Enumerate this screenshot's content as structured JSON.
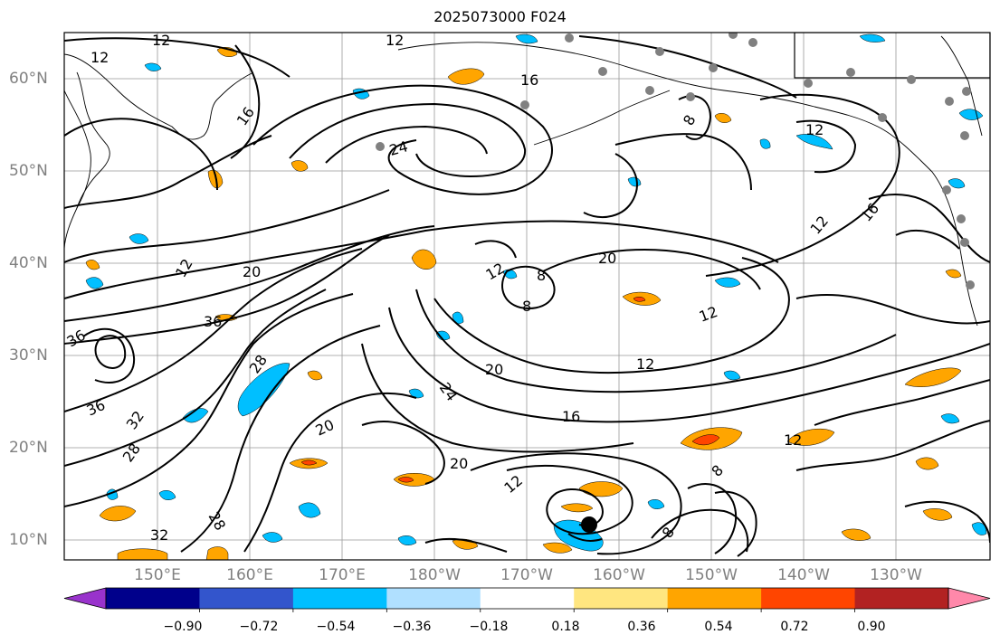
{
  "title": "2025073000 F024",
  "lat_labels": [
    "60°N",
    "50°N",
    "40°N",
    "30°N",
    "20°N",
    "10°N"
  ],
  "lon_labels": [
    "150°E",
    "160°E",
    "170°E",
    "180°W",
    "170°W",
    "160°W",
    "150°W",
    "140°W",
    "130°W"
  ],
  "contour_labels": [
    "12",
    "16",
    "12",
    "12",
    "16",
    "24",
    "12",
    "20",
    "36",
    "36",
    "36",
    "28",
    "32",
    "28",
    "28",
    "32",
    "20",
    "24",
    "20",
    "20",
    "16",
    "12",
    "12",
    "8",
    "8",
    "20",
    "12",
    "12",
    "16",
    "12",
    "8",
    "8",
    "12",
    "12",
    "8"
  ],
  "colorbar": {
    "tick_labels": [
      "−0.90",
      "−0.72",
      "−0.54",
      "−0.36",
      "−0.18",
      "0.18",
      "0.36",
      "0.54",
      "0.72",
      "0.90"
    ],
    "colors": [
      "#9933cc",
      "#00008b",
      "#3355cc",
      "#00bfff",
      "#b0e0ff",
      "#ffffff",
      "#ffe680",
      "#ffa500",
      "#ff4500",
      "#b22222",
      "#ff88aa"
    ]
  },
  "marker": {
    "label": "storm-center"
  }
}
